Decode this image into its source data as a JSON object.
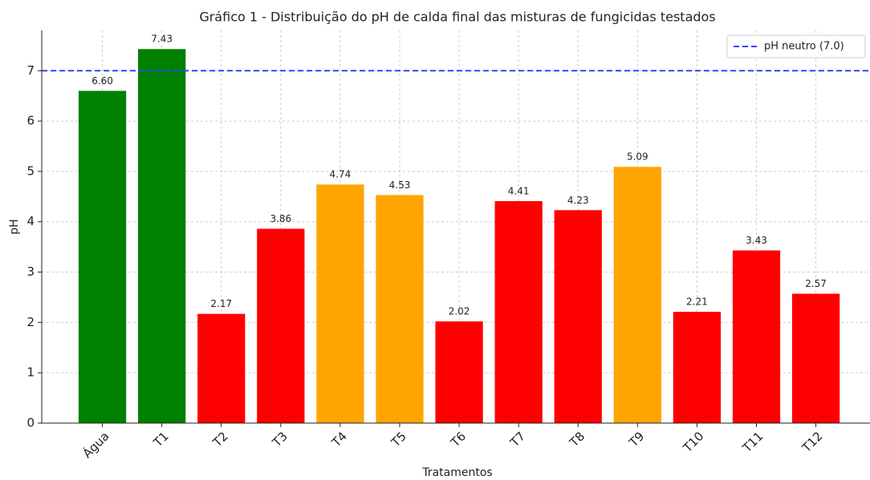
{
  "chart_data": {
    "type": "bar",
    "title": "Gráfico 1 - Distribuição do pH de calda final das misturas de fungicidas testados",
    "xlabel": "Tratamentos",
    "ylabel": "pH",
    "categories": [
      "Água",
      "T1",
      "T2",
      "T3",
      "T4",
      "T5",
      "T6",
      "T7",
      "T8",
      "T9",
      "T10",
      "T11",
      "T12"
    ],
    "values": [
      6.6,
      7.43,
      2.17,
      3.86,
      4.74,
      4.53,
      2.02,
      4.41,
      4.23,
      5.09,
      2.21,
      3.43,
      2.57
    ],
    "value_labels": [
      "6.60",
      "7.43",
      "2.17",
      "3.86",
      "4.74",
      "4.53",
      "2.02",
      "4.41",
      "4.23",
      "5.09",
      "2.21",
      "3.43",
      "2.57"
    ],
    "colors": [
      "#008000",
      "#008000",
      "#ff0000",
      "#ff0000",
      "#ffa500",
      "#ffa500",
      "#ff0000",
      "#ff0000",
      "#ff0000",
      "#ffa500",
      "#ff0000",
      "#ff0000",
      "#ff0000"
    ],
    "ylim": [
      0,
      7.8
    ],
    "yticks": [
      0,
      1,
      2,
      3,
      4,
      5,
      6,
      7
    ],
    "grid": true,
    "reference_line": {
      "value": 7,
      "label": "pH neutro (7.0)",
      "color": "#3344ff"
    },
    "legend": "upper right"
  }
}
